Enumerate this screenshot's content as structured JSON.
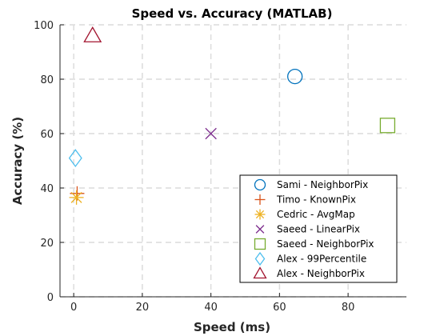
{
  "chart_data": {
    "type": "scatter",
    "title": "Speed vs. Accuracy (MATLAB)",
    "xlabel": "Speed (ms)",
    "ylabel": "Accuracy (%)",
    "xlim": [
      -4,
      97
    ],
    "ylim": [
      0,
      100
    ],
    "xticks": [
      0,
      20,
      40,
      60,
      80
    ],
    "yticks": [
      0,
      20,
      40,
      60,
      80,
      100
    ],
    "grid": true,
    "legend_position": "bottom-right",
    "series": [
      {
        "name": "Sami - NeighborPix",
        "marker": "circle",
        "color": "#0072BD",
        "points": [
          {
            "x": 64.5,
            "y": 81
          }
        ]
      },
      {
        "name": "Timo - KnownPix",
        "marker": "plus",
        "color": "#D95319",
        "points": [
          {
            "x": 1,
            "y": 38
          }
        ]
      },
      {
        "name": "Cedric - AvgMap",
        "marker": "asterisk",
        "color": "#EDB120",
        "points": [
          {
            "x": 0.8,
            "y": 36.5
          }
        ]
      },
      {
        "name": "Saeed - LinearPix",
        "marker": "x",
        "color": "#7E2F8E",
        "points": [
          {
            "x": 40,
            "y": 60
          }
        ]
      },
      {
        "name": "Saeed - NeighborPix",
        "marker": "square",
        "color": "#77AC30",
        "points": [
          {
            "x": 91.5,
            "y": 63
          }
        ]
      },
      {
        "name": "Alex - 99Percentile",
        "marker": "diamond",
        "color": "#4DBEEE",
        "points": [
          {
            "x": 0.5,
            "y": 51
          }
        ]
      },
      {
        "name": "Alex - NeighborPix",
        "marker": "triangle",
        "color": "#A2142F",
        "points": [
          {
            "x": 5.5,
            "y": 96
          }
        ]
      }
    ]
  }
}
